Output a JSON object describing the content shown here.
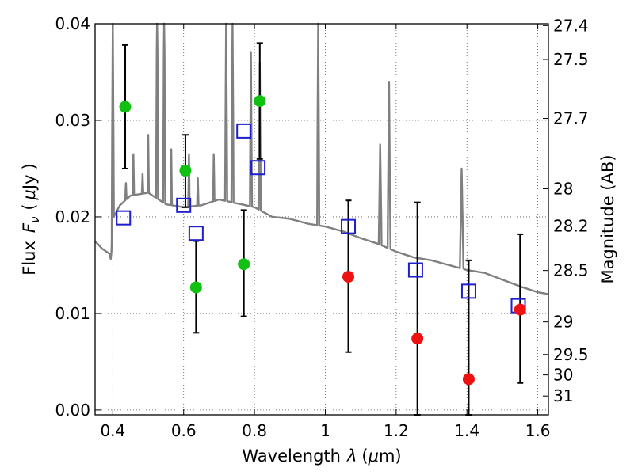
{
  "chart_data": {
    "type": "scatter",
    "title": "",
    "xlabel_parts": {
      "text": "Wavelength",
      "symbol": "λ",
      "unit_open": "(",
      "unit_mu": "μ",
      "unit_rest": "m)"
    },
    "ylabel_parts": {
      "text": "Flux",
      "symbol": "F",
      "subscript": "ν",
      "unit_open": "(",
      "unit_mu": "μ",
      "unit_rest": "Jy",
      "unit_close": ")"
    },
    "ylabel_right": "Magnitude (AB)",
    "xlim": [
      0.35,
      1.63
    ],
    "ylim": [
      -0.0005,
      0.04
    ],
    "grid": true,
    "x_ticks": [
      {
        "value": 0.4,
        "label": "0.4"
      },
      {
        "value": 0.6,
        "label": "0.6"
      },
      {
        "value": 0.8,
        "label": "0.8"
      },
      {
        "value": 1.0,
        "label": "1"
      },
      {
        "value": 1.2,
        "label": "1.2"
      },
      {
        "value": 1.4,
        "label": "1.4"
      },
      {
        "value": 1.6,
        "label": "1.6"
      }
    ],
    "y_ticks": [
      {
        "value": 0.0,
        "label": "0.00"
      },
      {
        "value": 0.01,
        "label": "0.01"
      },
      {
        "value": 0.02,
        "label": "0.02"
      },
      {
        "value": 0.03,
        "label": "0.03"
      },
      {
        "value": 0.04,
        "label": "0.04"
      }
    ],
    "right_ticks": [
      {
        "flux": 0.03981,
        "label": "27.4"
      },
      {
        "flux": 0.03631,
        "label": "27.5"
      },
      {
        "flux": 0.0302,
        "label": "27.7"
      },
      {
        "flux": 0.02291,
        "label": "28"
      },
      {
        "flux": 0.01905,
        "label": "28.2"
      },
      {
        "flux": 0.01445,
        "label": "28.5"
      },
      {
        "flux": 0.00912,
        "label": "29"
      },
      {
        "flux": 0.00575,
        "label": "29.5"
      },
      {
        "flux": 0.00363,
        "label": "30"
      },
      {
        "flux": 0.00145,
        "label": "31"
      }
    ],
    "model_spectrum": {
      "color": "#808080",
      "continuum": [
        [
          0.35,
          0.0175
        ],
        [
          0.37,
          0.0167
        ],
        [
          0.39,
          0.0162
        ],
        [
          0.395,
          0.0155
        ],
        [
          0.4,
          0.0198
        ],
        [
          0.42,
          0.0212
        ],
        [
          0.45,
          0.0222
        ],
        [
          0.5,
          0.0225
        ],
        [
          0.55,
          0.0213
        ],
        [
          0.6,
          0.021
        ],
        [
          0.65,
          0.0212
        ],
        [
          0.7,
          0.0218
        ],
        [
          0.75,
          0.0214
        ],
        [
          0.8,
          0.021
        ],
        [
          0.85,
          0.02
        ],
        [
          0.9,
          0.0198
        ],
        [
          0.95,
          0.0193
        ],
        [
          1.0,
          0.019
        ],
        [
          1.05,
          0.0185
        ],
        [
          1.1,
          0.0178
        ],
        [
          1.15,
          0.0172
        ],
        [
          1.2,
          0.0164
        ],
        [
          1.25,
          0.0158
        ],
        [
          1.3,
          0.0155
        ],
        [
          1.35,
          0.015
        ],
        [
          1.4,
          0.0145
        ],
        [
          1.45,
          0.0142
        ],
        [
          1.5,
          0.0135
        ],
        [
          1.55,
          0.0128
        ],
        [
          1.6,
          0.0122
        ],
        [
          1.63,
          0.012
        ]
      ],
      "lines": [
        {
          "x": 0.4,
          "peak": 0.045,
          "halfwidth": 0.003
        },
        {
          "x": 0.437,
          "peak": 0.0235,
          "halfwidth": 0.002
        },
        {
          "x": 0.458,
          "peak": 0.0265,
          "halfwidth": 0.002
        },
        {
          "x": 0.484,
          "peak": 0.0245,
          "halfwidth": 0.002
        },
        {
          "x": 0.5,
          "peak": 0.0285,
          "halfwidth": 0.002
        },
        {
          "x": 0.525,
          "peak": 0.045,
          "halfwidth": 0.003
        },
        {
          "x": 0.545,
          "peak": 0.045,
          "halfwidth": 0.003
        },
        {
          "x": 0.565,
          "peak": 0.027,
          "halfwidth": 0.002
        },
        {
          "x": 0.615,
          "peak": 0.0265,
          "halfwidth": 0.002
        },
        {
          "x": 0.64,
          "peak": 0.024,
          "halfwidth": 0.002
        },
        {
          "x": 0.685,
          "peak": 0.0265,
          "halfwidth": 0.002
        },
        {
          "x": 0.72,
          "peak": 0.045,
          "halfwidth": 0.003
        },
        {
          "x": 0.738,
          "peak": 0.045,
          "halfwidth": 0.003
        },
        {
          "x": 0.79,
          "peak": 0.037,
          "halfwidth": 0.003
        },
        {
          "x": 0.815,
          "peak": 0.036,
          "halfwidth": 0.003
        },
        {
          "x": 0.98,
          "peak": 0.045,
          "halfwidth": 0.003
        },
        {
          "x": 1.155,
          "peak": 0.0275,
          "halfwidth": 0.004
        },
        {
          "x": 1.18,
          "peak": 0.034,
          "halfwidth": 0.004
        },
        {
          "x": 1.385,
          "peak": 0.025,
          "halfwidth": 0.005
        }
      ]
    },
    "series": [
      {
        "marker": "open-square",
        "color": "#1f1fcf",
        "points": [
          {
            "x": 0.43,
            "y": 0.0199
          },
          {
            "x": 0.6,
            "y": 0.0212
          },
          {
            "x": 0.635,
            "y": 0.0183
          },
          {
            "x": 0.77,
            "y": 0.0289
          },
          {
            "x": 0.81,
            "y": 0.0251
          },
          {
            "x": 1.065,
            "y": 0.019
          },
          {
            "x": 1.255,
            "y": 0.0145
          },
          {
            "x": 1.405,
            "y": 0.0123
          },
          {
            "x": 1.545,
            "y": 0.0108
          }
        ]
      },
      {
        "marker": "filled-circle",
        "color": "#11c011",
        "points": [
          {
            "x": 0.435,
            "y": 0.0314,
            "yerr_low": 0.025,
            "yerr_high": 0.0378
          },
          {
            "x": 0.605,
            "y": 0.0248,
            "yerr_low": 0.021,
            "yerr_high": 0.0285
          },
          {
            "x": 0.635,
            "y": 0.0127,
            "yerr_low": 0.008,
            "yerr_high": 0.0175
          },
          {
            "x": 0.77,
            "y": 0.0151,
            "yerr_low": 0.0097,
            "yerr_high": 0.0207
          },
          {
            "x": 0.815,
            "y": 0.032,
            "yerr_low": 0.026,
            "yerr_high": 0.038
          }
        ]
      },
      {
        "marker": "filled-circle",
        "color": "#ee1111",
        "points": [
          {
            "x": 1.065,
            "y": 0.0138,
            "yerr_low": 0.006,
            "yerr_high": 0.0217
          },
          {
            "x": 1.26,
            "y": 0.0074,
            "yerr_low": -0.0005,
            "yerr_high": 0.0215
          },
          {
            "x": 1.405,
            "y": 0.0032,
            "yerr_low": -0.0005,
            "yerr_high": 0.0155
          },
          {
            "x": 1.55,
            "y": 0.0104,
            "yerr_low": 0.0028,
            "yerr_high": 0.0182
          }
        ]
      }
    ]
  }
}
